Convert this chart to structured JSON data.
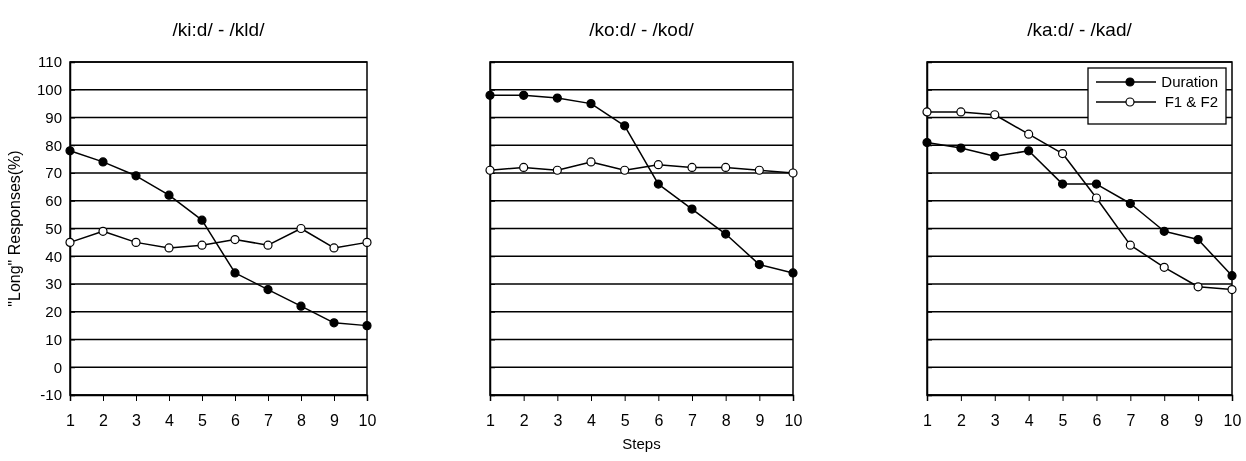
{
  "chart_data": [
    {
      "type": "line",
      "title": "/ki:d/ - /kld/",
      "ylabel": "\"Long\" Responses(%)",
      "x": [
        1,
        2,
        3,
        4,
        5,
        6,
        7,
        8,
        9,
        10
      ],
      "xlim": [
        1,
        10
      ],
      "xticks": [
        1,
        2,
        3,
        4,
        5,
        6,
        7,
        8,
        9,
        10
      ],
      "ylim": [
        -10,
        110
      ],
      "yticks": [
        -10,
        0,
        10,
        20,
        30,
        40,
        50,
        60,
        70,
        80,
        90,
        100,
        110
      ],
      "grid": "y",
      "legend": false,
      "marker": "circle",
      "line_style": "solid",
      "series": [
        {
          "color": "#000000",
          "values": [
            78,
            74,
            69,
            62,
            53,
            34,
            28,
            22,
            16,
            15
          ]
        },
        {
          "color": "#ffffff",
          "values": [
            45,
            49,
            45,
            43,
            44,
            46,
            44,
            50,
            43,
            45
          ]
        }
      ]
    },
    {
      "type": "line",
      "title": "/ko:d/ - /kod/",
      "xlabel": "Steps",
      "x": [
        1,
        2,
        3,
        4,
        5,
        6,
        7,
        8,
        9,
        10
      ],
      "xlim": [
        1,
        10
      ],
      "xticks": [
        1,
        2,
        3,
        4,
        5,
        6,
        7,
        8,
        9,
        10
      ],
      "ylim": [
        -10,
        110
      ],
      "yticks": [
        -10,
        0,
        10,
        20,
        30,
        40,
        50,
        60,
        70,
        80,
        90,
        100,
        110
      ],
      "grid": "y",
      "legend": false,
      "marker": "circle",
      "line_style": "solid",
      "tick_labels": "x",
      "series": [
        {
          "color": "#000000",
          "values": [
            98,
            98,
            97,
            95,
            87,
            66,
            57,
            48,
            37,
            34
          ]
        },
        {
          "color": "#ffffff",
          "values": [
            71,
            72,
            71,
            74,
            71,
            73,
            72,
            72,
            71,
            70
          ]
        }
      ]
    },
    {
      "type": "line",
      "title": "/ka:d/ - /kad/",
      "x": [
        1,
        2,
        3,
        4,
        5,
        6,
        7,
        8,
        9,
        10
      ],
      "xlim": [
        1,
        10
      ],
      "xticks": [
        1,
        2,
        3,
        4,
        5,
        6,
        7,
        8,
        9,
        10
      ],
      "ylim": [
        -10,
        110
      ],
      "yticks": [
        -10,
        0,
        10,
        20,
        30,
        40,
        50,
        60,
        70,
        80,
        90,
        100,
        110
      ],
      "grid": "y",
      "legend": "top right",
      "marker": "circle",
      "line_style": "solid",
      "tick_labels": "x",
      "series": [
        {
          "name": "Duration",
          "color": "#000000",
          "values": [
            81,
            79,
            76,
            78,
            66,
            66,
            59,
            49,
            46,
            33
          ]
        },
        {
          "name": "F1 & F2",
          "color": "#ffffff",
          "values": [
            92,
            92,
            91,
            84,
            77,
            61,
            44,
            36,
            29,
            28
          ]
        }
      ]
    }
  ]
}
